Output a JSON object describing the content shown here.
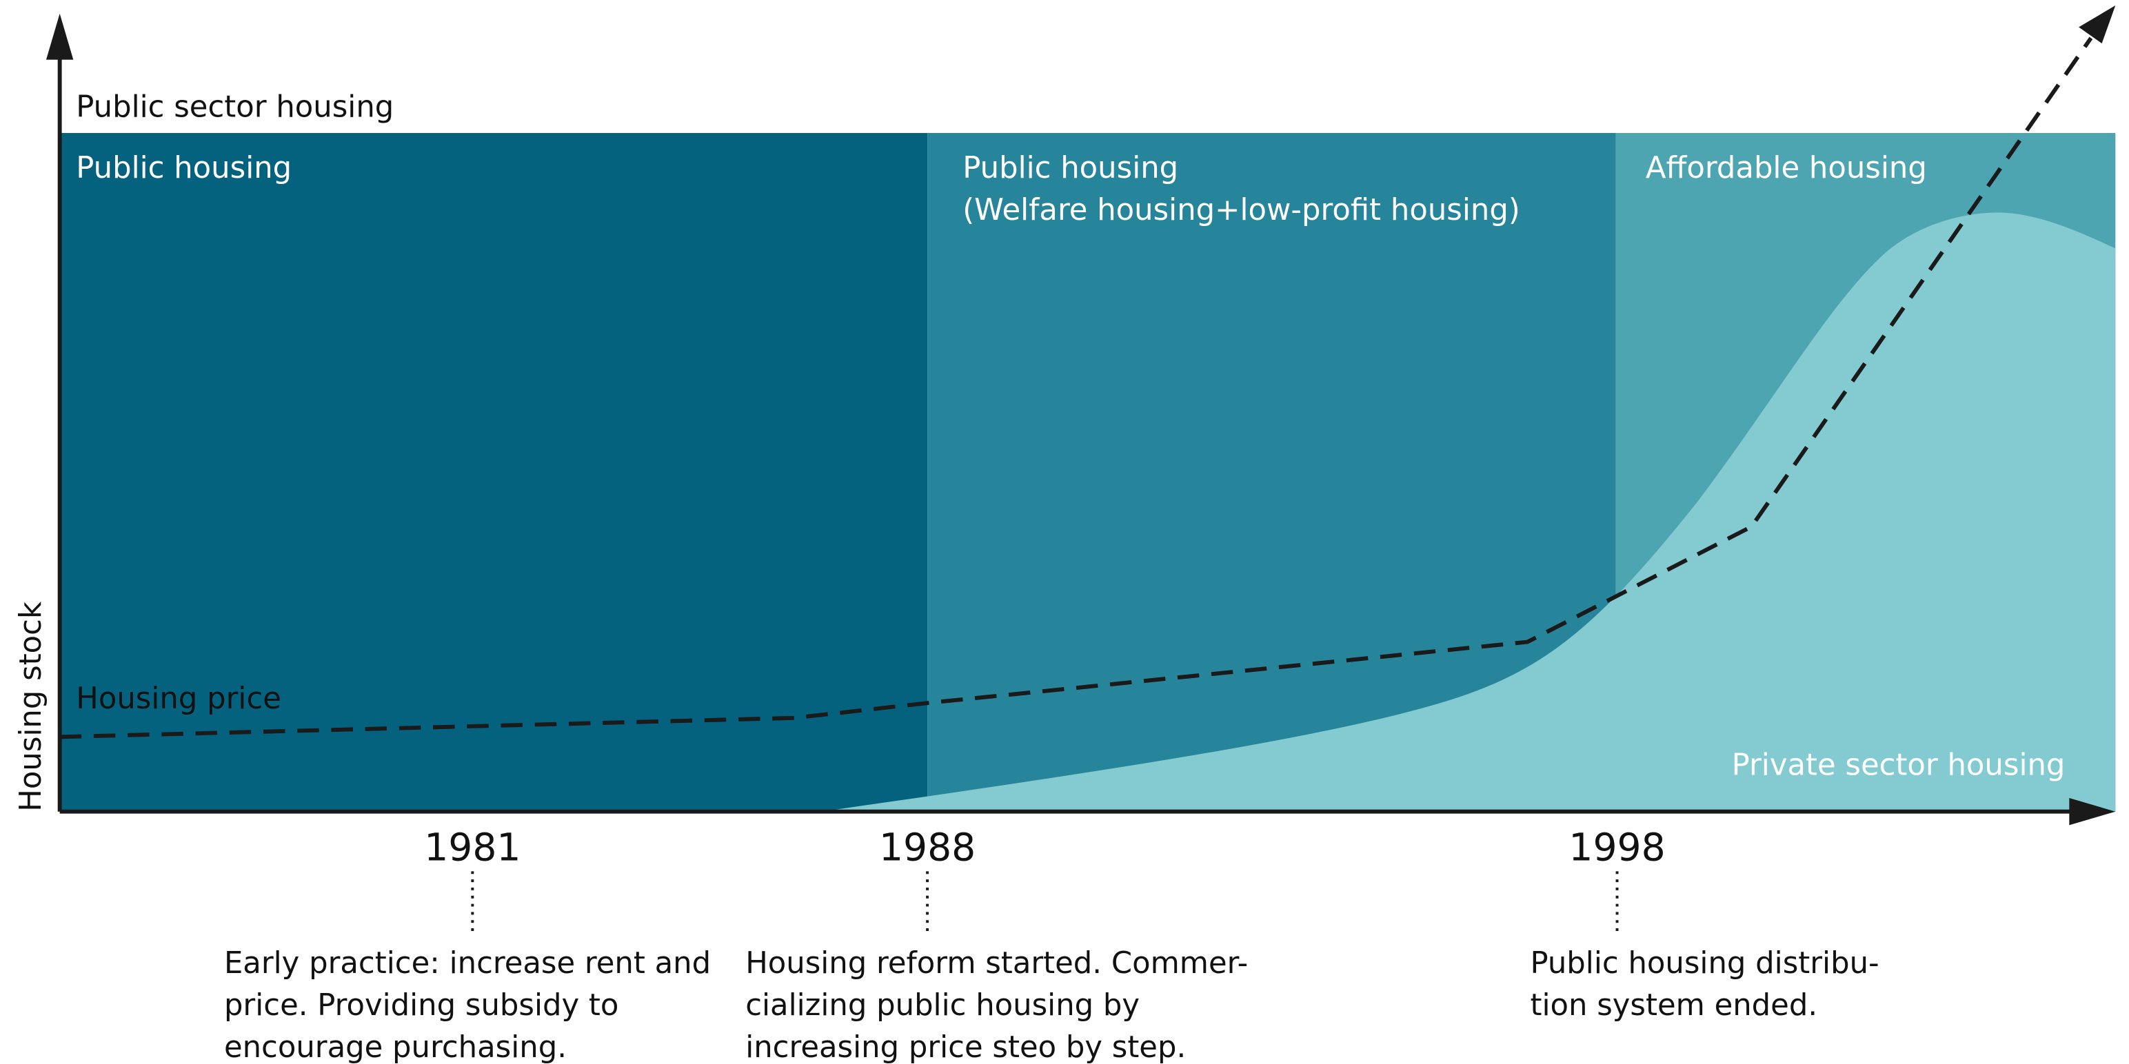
{
  "y_axis_label": "Housing stock",
  "top_label": "Public sector housing",
  "regions": [
    {
      "lines": [
        "Public housing"
      ]
    },
    {
      "lines": [
        "Public housing",
        "(Welfare housing+low-profit housing)"
      ]
    },
    {
      "lines": [
        "Affordable housing"
      ]
    }
  ],
  "price_label": "Housing price",
  "private_label": "Private sector housing",
  "timeline": [
    {
      "year": "1981",
      "note": [
        "Early practice: increase rent and",
        "price. Providing subsidy to",
        "encourage purchasing."
      ]
    },
    {
      "year": "1988",
      "note": [
        "Housing reform started. Commer-",
        "cializing public housing by",
        "increasing price steo by step."
      ]
    },
    {
      "year": "1998",
      "note": [
        "Public housing distribu-",
        "tion system ended."
      ]
    }
  ]
}
